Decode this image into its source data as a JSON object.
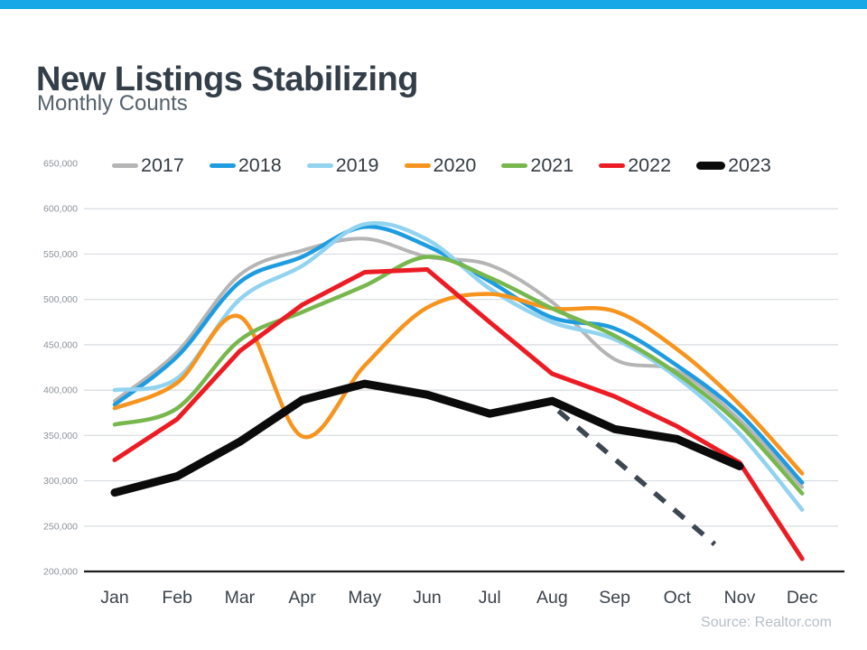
{
  "header": {
    "title": "New Listings Stabilizing",
    "subtitle": "Monthly Counts"
  },
  "footer": {
    "source": "Source: Realtor.com"
  },
  "colors": {
    "top_bar": "#17a8e8",
    "gridline": "#d7dbdf",
    "axis_line": "#1c1c1c",
    "y_tick_label": "#8b939b",
    "x_tick_label": "#39424b",
    "projection": "#3d4752"
  },
  "chart_data": {
    "type": "line",
    "title": "New Listings Stabilizing",
    "subtitle": "Monthly Counts",
    "legend_position": "top",
    "grid": "horizontal",
    "categories": [
      "Jan",
      "Feb",
      "Mar",
      "Apr",
      "May",
      "Jun",
      "Jul",
      "Aug",
      "Sep",
      "Oct",
      "Nov",
      "Dec"
    ],
    "y_axis": {
      "min": 200000,
      "max": 650000,
      "step": 50000,
      "ticks": [
        {
          "value": 650000,
          "label": "650,000"
        },
        {
          "value": 600000,
          "label": "600,000"
        },
        {
          "value": 550000,
          "label": "550,000"
        },
        {
          "value": 500000,
          "label": "500,000"
        },
        {
          "value": 450000,
          "label": "450,000"
        },
        {
          "value": 400000,
          "label": "400,000"
        },
        {
          "value": 350000,
          "label": "350,000"
        },
        {
          "value": 300000,
          "label": "300,000"
        },
        {
          "value": 250000,
          "label": "250,000"
        },
        {
          "value": 200000,
          "label": "200,000"
        }
      ]
    },
    "series": [
      {
        "name": "2017",
        "color": "#b5b5b5",
        "width": 4,
        "smooth": true,
        "values": [
          388000,
          442000,
          527000,
          554000,
          567000,
          547000,
          538000,
          497000,
          434000,
          421000,
          367000,
          293000
        ]
      },
      {
        "name": "2018",
        "color": "#1f9cdf",
        "width": 4.5,
        "smooth": true,
        "values": [
          384000,
          437000,
          519000,
          547000,
          580000,
          559000,
          520000,
          480000,
          468000,
          427000,
          374000,
          298000
        ]
      },
      {
        "name": "2019",
        "color": "#92d3f0",
        "width": 4.5,
        "smooth": true,
        "values": [
          400000,
          413000,
          500000,
          537000,
          583000,
          566000,
          512000,
          475000,
          456000,
          414000,
          352000,
          268000
        ]
      },
      {
        "name": "2020",
        "color": "#f7941e",
        "width": 4.5,
        "smooth": true,
        "values": [
          380000,
          408000,
          481000,
          349000,
          427000,
          491000,
          506000,
          490000,
          487000,
          445000,
          384000,
          308000
        ]
      },
      {
        "name": "2021",
        "color": "#77b74d",
        "width": 4.5,
        "smooth": true,
        "values": [
          362000,
          380000,
          455000,
          486000,
          515000,
          547000,
          524000,
          490000,
          460000,
          418000,
          362000,
          286000
        ]
      },
      {
        "name": "2022",
        "color": "#ec1c24",
        "width": 5,
        "smooth": false,
        "values": [
          323000,
          368000,
          443000,
          494000,
          530000,
          533000,
          475000,
          418000,
          393000,
          360000,
          320000,
          214000
        ]
      },
      {
        "name": "2023",
        "color": "#0b0b0b",
        "width": 9,
        "smooth": false,
        "values": [
          287000,
          305000,
          343000,
          389000,
          407000,
          395000,
          374000,
          388000,
          357000,
          346000,
          316000,
          null
        ]
      }
    ],
    "projection": {
      "name": "continued-decline-projection",
      "style": "dashed",
      "start_month_index": 7.1,
      "start_value": 377000,
      "end_month_index": 9.6,
      "end_value": 230000
    }
  }
}
